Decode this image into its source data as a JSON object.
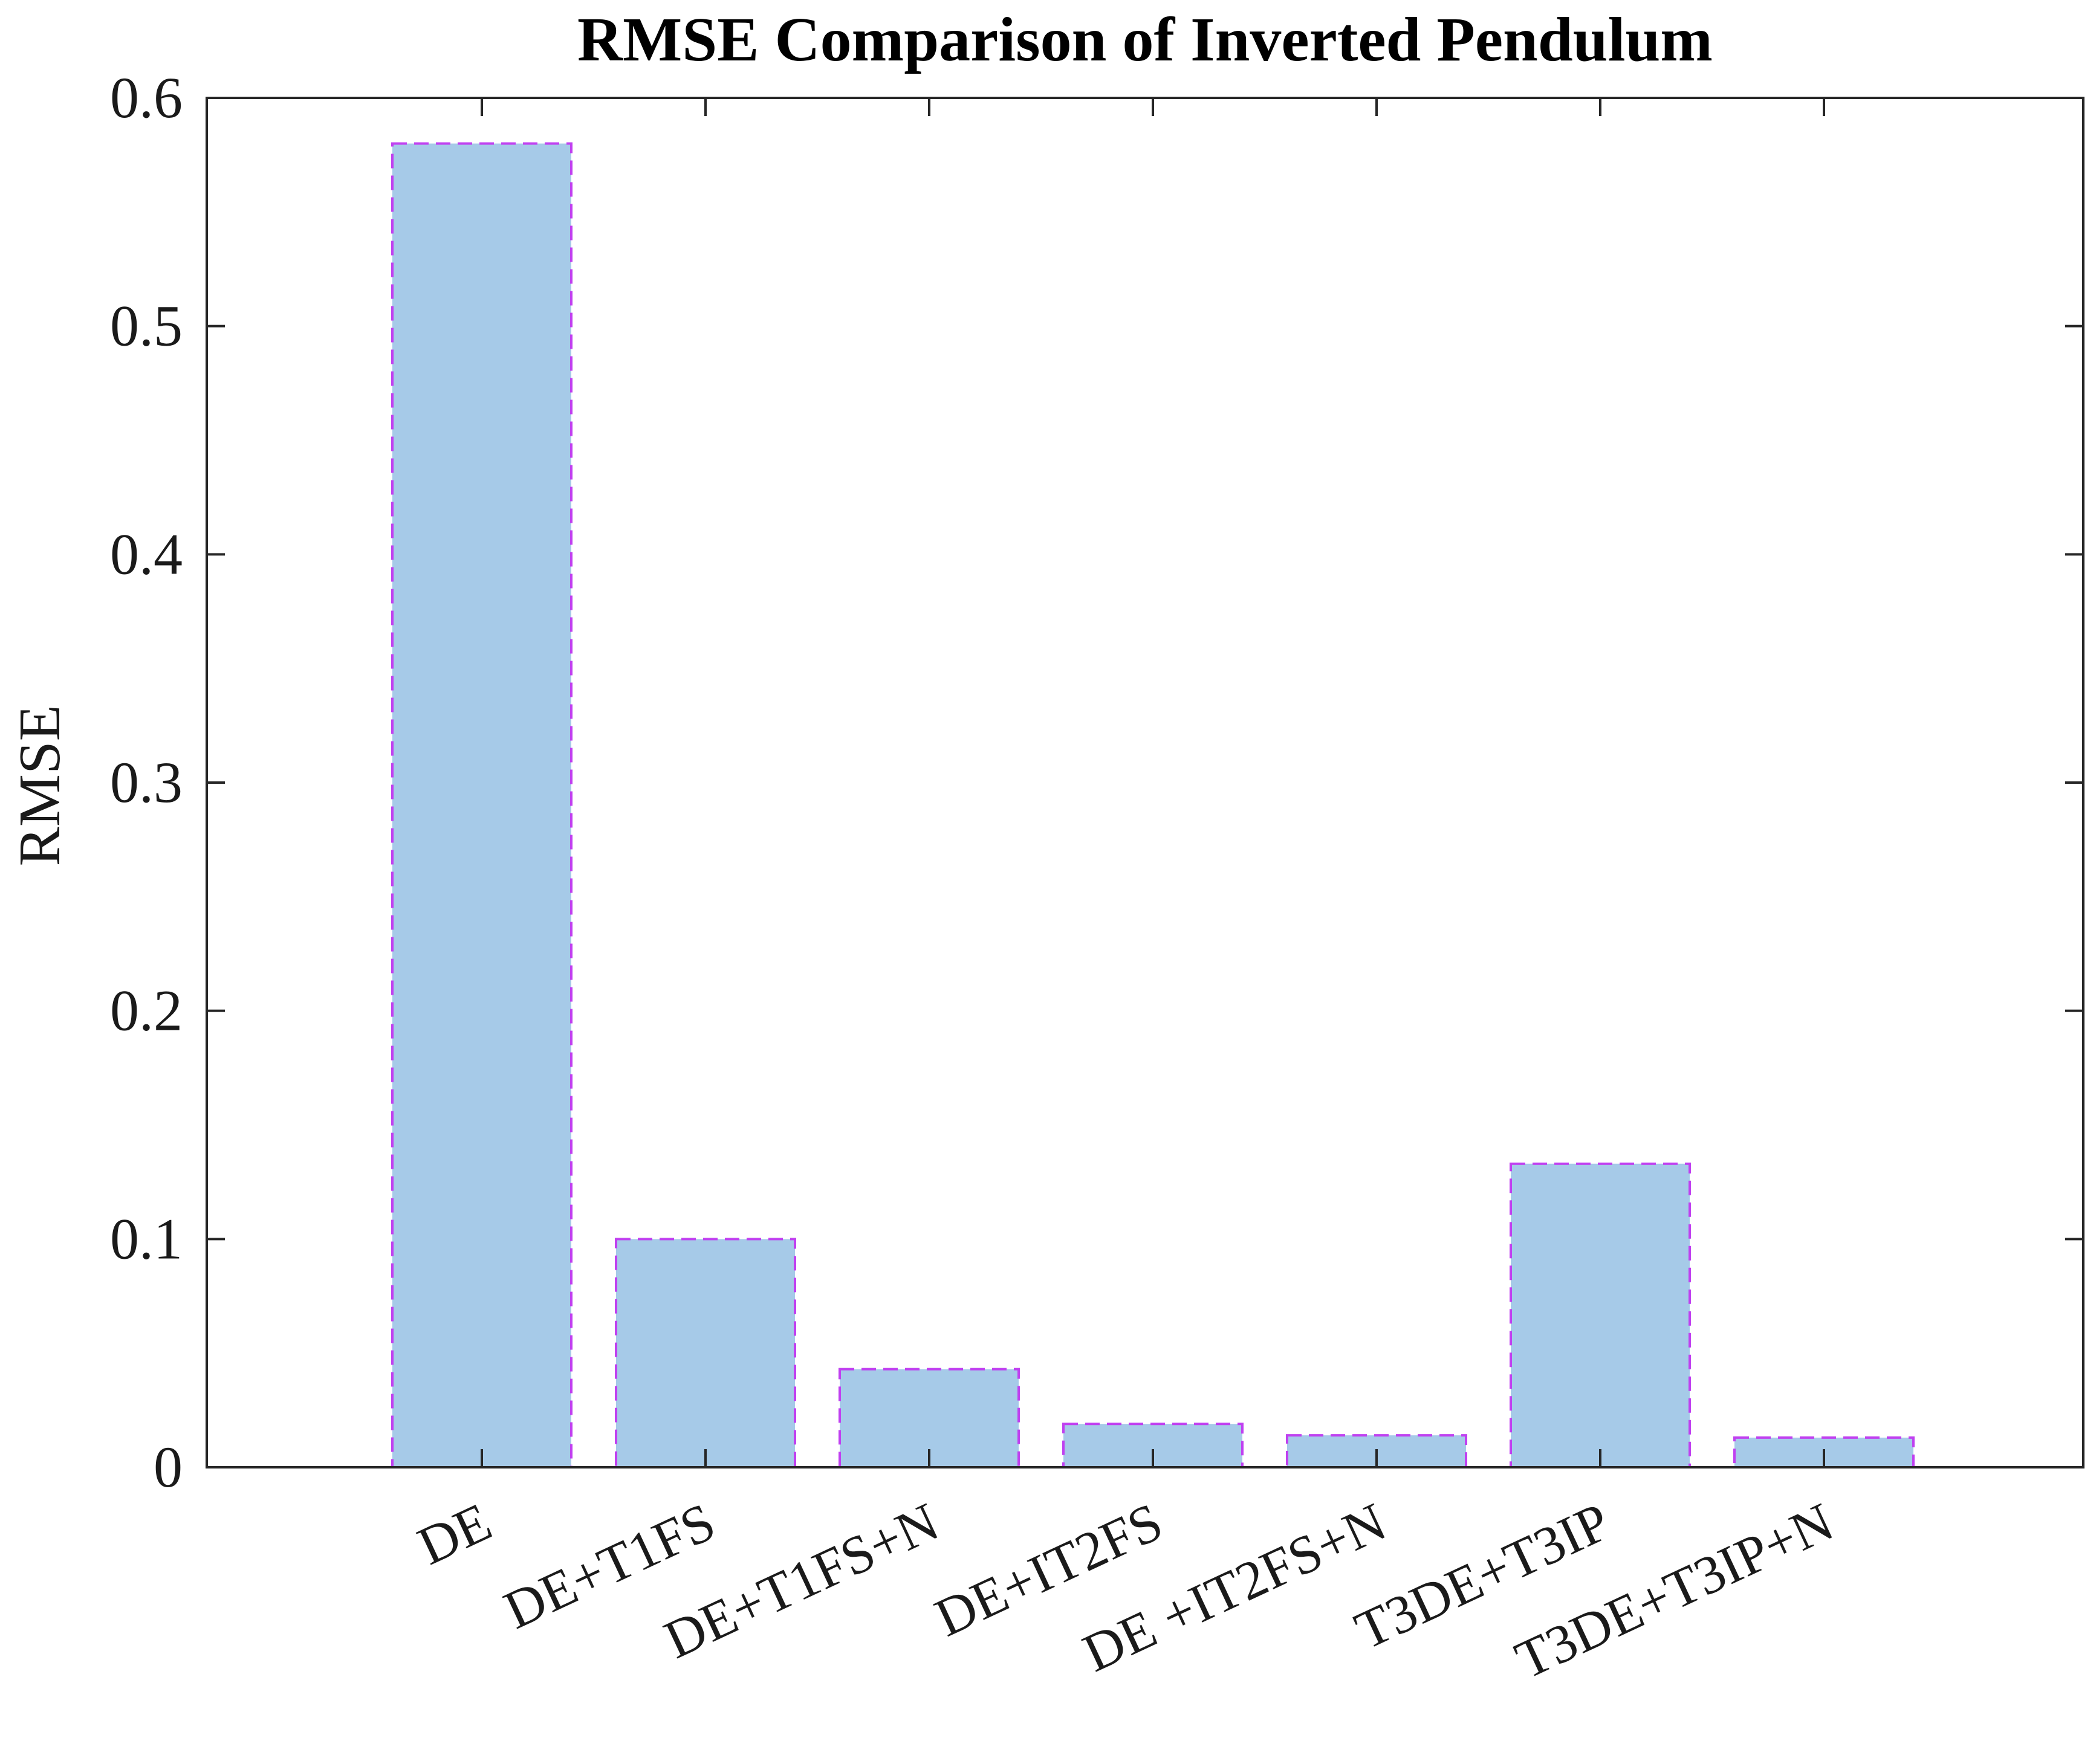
{
  "chart_data": {
    "type": "bar",
    "title": "RMSE Comparison of Inverted Pendulum",
    "xlabel": "",
    "ylabel": "RMSE",
    "categories": [
      "DE",
      "DE+T1FS",
      "DE+T1FS+N",
      "DE+IT2FS",
      "DE +IT2FS+N",
      "T3DE+T3IP",
      "T3DE+T3IP+N"
    ],
    "values": [
      0.58,
      0.1,
      0.043,
      0.019,
      0.014,
      0.133,
      0.013
    ],
    "ylim": [
      0,
      0.6
    ],
    "yticks": [
      0,
      0.1,
      0.2,
      0.3,
      0.4,
      0.5,
      0.6
    ],
    "ytick_labels": [
      "0",
      "0.1",
      "0.2",
      "0.3",
      "0.4",
      "0.5",
      "0.6"
    ],
    "grid": false,
    "bar_fill": "#a6cae8",
    "bar_edge": "#c040f0",
    "axis_color": "#262626"
  }
}
